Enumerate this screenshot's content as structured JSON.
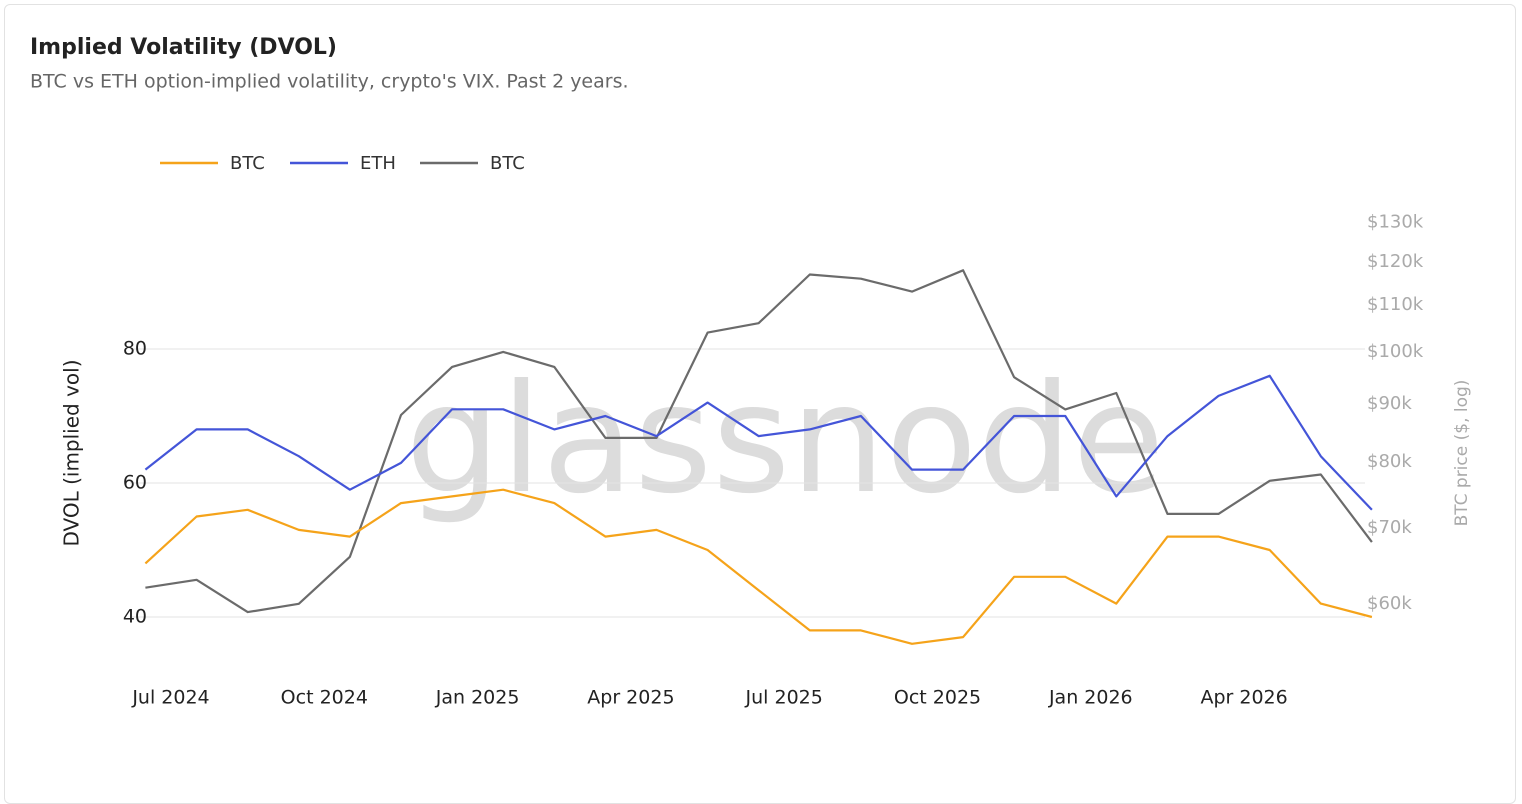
{
  "chart_data": {
    "type": "line",
    "title": "Implied Volatility (DVOL)",
    "subtitle": "BTC vs ETH option-implied volatility, crypto's VIX. Past 2 years.",
    "watermark": "glassnode",
    "y_label": "DVOL (implied vol)",
    "y2_label": "BTC price ($, log)",
    "x": [
      "2024-06",
      "2024-07",
      "2024-08",
      "2024-09",
      "2024-10",
      "2024-11",
      "2024-12",
      "2025-01",
      "2025-02",
      "2025-03",
      "2025-04",
      "2025-05",
      "2025-06",
      "2025-07",
      "2025-08",
      "2025-09",
      "2025-10",
      "2025-11",
      "2025-12",
      "2026-01",
      "2026-02",
      "2026-03",
      "2026-04",
      "2026-05",
      "2026-06"
    ],
    "xticks": [
      {
        "value": "2024-07",
        "label": "Jul 2024"
      },
      {
        "value": "2024-10",
        "label": "Oct 2024"
      },
      {
        "value": "2025-01",
        "label": "Jan 2025"
      },
      {
        "value": "2025-04",
        "label": "Apr 2025"
      },
      {
        "value": "2025-07",
        "label": "Jul 2025"
      },
      {
        "value": "2025-10",
        "label": "Oct 2025"
      },
      {
        "value": "2026-01",
        "label": "Jan 2026"
      },
      {
        "value": "2026-04",
        "label": "Apr 2026"
      }
    ],
    "ylim": [
      30,
      100
    ],
    "yticks": [
      40,
      60,
      80
    ],
    "y2lim": [
      51000,
      132000
    ],
    "y2log": true,
    "y2ticks": [
      {
        "value": 60000,
        "label": "$60k"
      },
      {
        "value": 70000,
        "label": "$70k"
      },
      {
        "value": 80000,
        "label": "$80k"
      },
      {
        "value": 90000,
        "label": "$90k"
      },
      {
        "value": 100000,
        "label": "$100k"
      },
      {
        "value": 110000,
        "label": "$110k"
      },
      {
        "value": 120000,
        "label": "$120k"
      },
      {
        "value": 130000,
        "label": "$130k"
      }
    ],
    "grid": true,
    "legend": "top-left",
    "series": [
      {
        "name": "BTC",
        "color": "#f5a31a",
        "values": [
          48,
          55,
          56,
          53,
          52,
          57,
          58,
          59,
          57,
          52,
          53,
          50,
          44,
          38,
          38,
          36,
          37,
          46,
          46,
          42,
          52,
          52,
          50,
          42,
          40
        ]
      },
      {
        "name": "ETH",
        "color": "#4455d8",
        "values": [
          62,
          68,
          68,
          64,
          59,
          63,
          71,
          71,
          68,
          70,
          67,
          72,
          67,
          68,
          70,
          62,
          62,
          70,
          70,
          58,
          67,
          73,
          76,
          64,
          56
        ]
      },
      {
        "name": "BTC",
        "color": "#6b6b6b",
        "axis": "y2",
        "values": [
          62000,
          63000,
          59000,
          60000,
          66000,
          88000,
          97000,
          100000,
          97000,
          84000,
          84000,
          104000,
          106000,
          117000,
          116000,
          113000,
          118000,
          95000,
          89000,
          92000,
          72000,
          72000,
          77000,
          78000,
          68000
        ]
      }
    ]
  }
}
